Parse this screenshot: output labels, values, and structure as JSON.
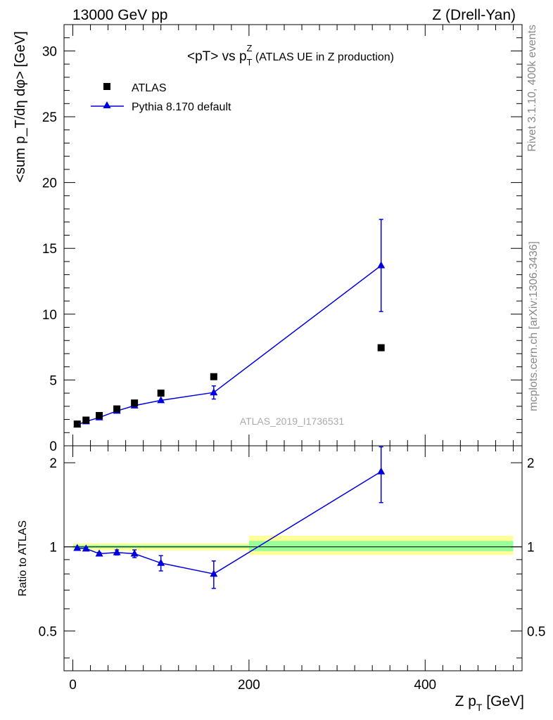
{
  "header": {
    "left": "13000 GeV pp",
    "right": "Z (Drell-Yan)"
  },
  "side_text": {
    "rivet": "Rivet 3.1.10,  400k events",
    "mcplots": "mcplots.cern.ch [arXiv:1306.3436]"
  },
  "chart_data": [
    {
      "type": "scatter",
      "panel": "main",
      "title_main": "<pT> vs p",
      "title_sup": "Z",
      "title_sub": "T",
      "title_rest": " (ATLAS UE in Z production)",
      "ylabel": "<sum p_T/dη dφ> [GeV]",
      "ylim": [
        0,
        32
      ],
      "yticks": [
        0,
        5,
        10,
        15,
        20,
        25,
        30
      ],
      "xlim": [
        -10,
        510
      ],
      "watermark": "ATLAS_2019_I1736531",
      "legend": {
        "placement": "top-left",
        "entries": [
          "ATLAS",
          "Pythia 8.170 default"
        ]
      },
      "series": [
        {
          "name": "ATLAS",
          "marker": "square",
          "color": "#000000",
          "points": [
            {
              "x": 5,
              "y": 1.65
            },
            {
              "x": 15,
              "y": 1.95
            },
            {
              "x": 30,
              "y": 2.3
            },
            {
              "x": 50,
              "y": 2.8
            },
            {
              "x": 70,
              "y": 3.25
            },
            {
              "x": 100,
              "y": 4.0
            },
            {
              "x": 160,
              "y": 5.25
            },
            {
              "x": 350,
              "y": 7.45
            }
          ]
        },
        {
          "name": "Pythia 8.170 default",
          "marker": "triangle",
          "color": "#0000dd",
          "points": [
            {
              "x": 5,
              "y": 1.6,
              "err": 0.05
            },
            {
              "x": 15,
              "y": 1.85,
              "err": 0.05
            },
            {
              "x": 30,
              "y": 2.15,
              "err": 0.05
            },
            {
              "x": 50,
              "y": 2.65,
              "err": 0.08
            },
            {
              "x": 70,
              "y": 3.05,
              "err": 0.1
            },
            {
              "x": 100,
              "y": 3.45,
              "err": 0.15
            },
            {
              "x": 160,
              "y": 4.05,
              "err": 0.5
            },
            {
              "x": 350,
              "y": 13.7,
              "err": 3.5
            }
          ]
        }
      ]
    },
    {
      "type": "scatter",
      "panel": "ratio",
      "ylabel": "Ratio to ATLAS",
      "xlabel_main": "Z p",
      "xlabel_sub": "T",
      "xlabel_rest": " [GeV]",
      "yscale": "log",
      "ylim": [
        0.36,
        2.3
      ],
      "yticks": [
        0.5,
        1,
        2
      ],
      "xlim": [
        -10,
        510
      ],
      "xticks": [
        0,
        200,
        400
      ],
      "uncertainty_bands": [
        {
          "x0": 0,
          "x1": 200,
          "inner": [
            0.99,
            1.015
          ],
          "outer": [
            0.97,
            1.03
          ]
        },
        {
          "x0": 200,
          "x1": 500,
          "inner": [
            0.965,
            1.05
          ],
          "outer": [
            0.935,
            1.095
          ]
        }
      ],
      "series": [
        {
          "name": "Pythia 8.170 default",
          "color": "#0000dd",
          "points": [
            {
              "x": 5,
              "y": 0.99,
              "err": 0.01
            },
            {
              "x": 15,
              "y": 0.985,
              "err": 0.01
            },
            {
              "x": 30,
              "y": 0.945,
              "err": 0.01
            },
            {
              "x": 50,
              "y": 0.955,
              "err": 0.02
            },
            {
              "x": 70,
              "y": 0.945,
              "err": 0.03
            },
            {
              "x": 100,
              "y": 0.875,
              "err": 0.055
            },
            {
              "x": 160,
              "y": 0.8,
              "err": 0.09
            },
            {
              "x": 350,
              "y": 1.86,
              "err": 0.42
            }
          ]
        }
      ]
    }
  ]
}
